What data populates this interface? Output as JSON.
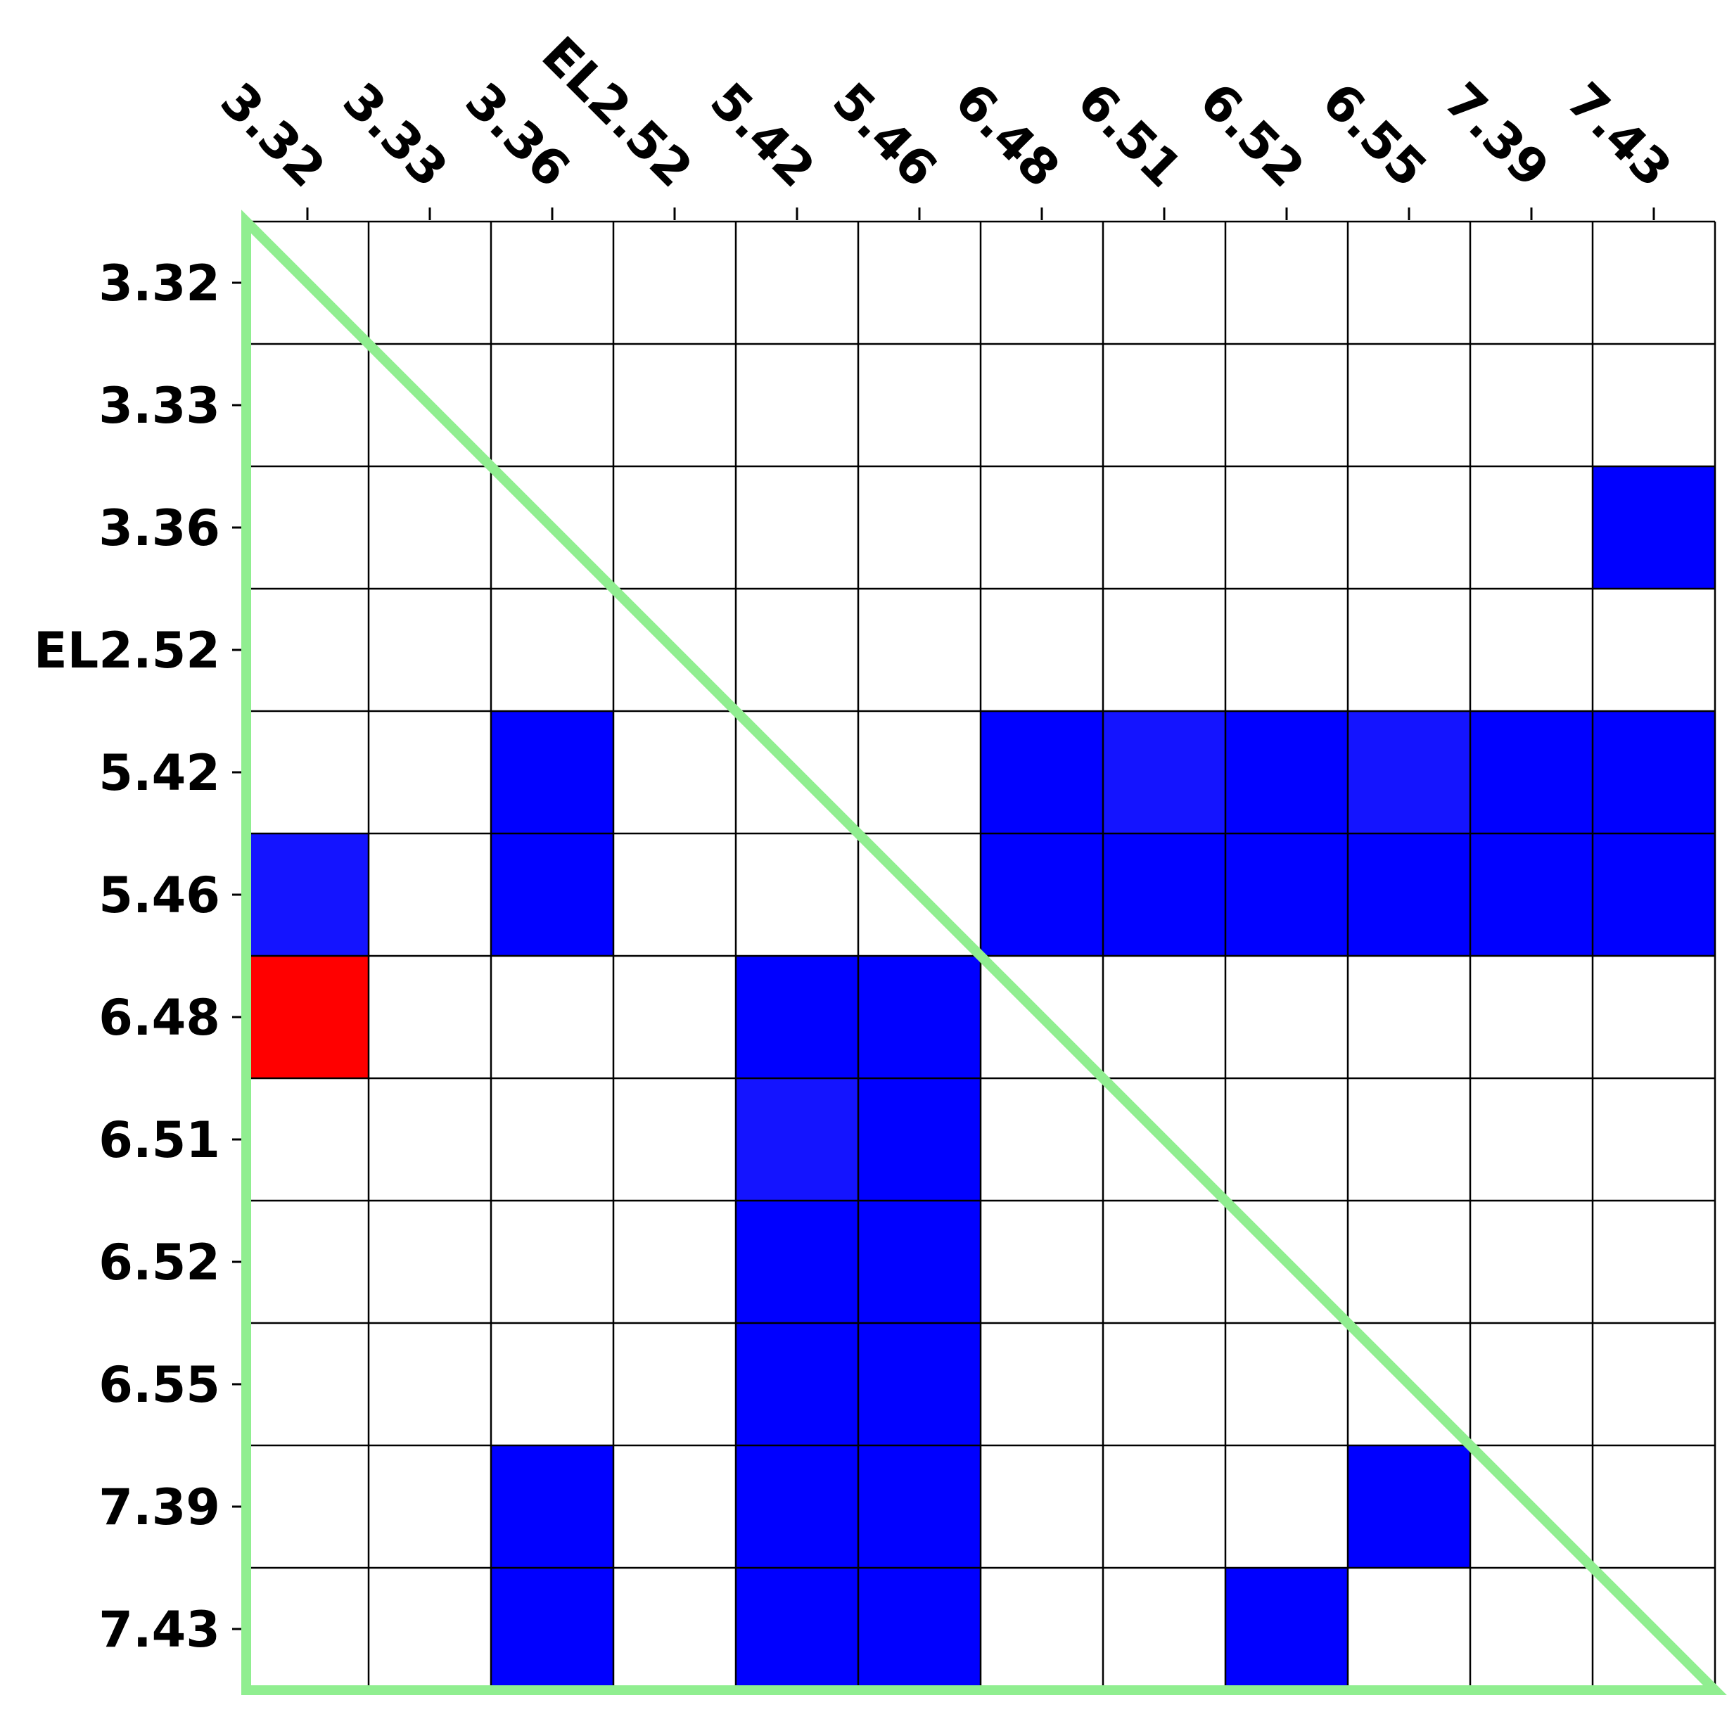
{
  "chart_data": {
    "type": "heatmap",
    "title": "",
    "xlabel": "",
    "ylabel": "",
    "x_categories": [
      "3.32",
      "3.33",
      "3.36",
      "EL2.52",
      "5.42",
      "5.46",
      "6.48",
      "6.51",
      "6.52",
      "6.55",
      "7.39",
      "7.43"
    ],
    "y_categories": [
      "3.32",
      "3.33",
      "3.36",
      "EL2.52",
      "5.42",
      "5.46",
      "6.48",
      "6.51",
      "6.52",
      "6.55",
      "7.39",
      "7.43"
    ],
    "x_tick_position": "top",
    "grid": true,
    "diagonal_triangle_outline": "lower-left",
    "colors": {
      "empty": "#ffffff",
      "blue": "#0000ff",
      "light_blue": "#1414ff",
      "red": "#ff0000",
      "grid": "#000000",
      "triangle": "#90ee90"
    },
    "cells": [
      {
        "row": "3.36",
        "col": "7.43",
        "color": "blue"
      },
      {
        "row": "5.42",
        "col": "3.36",
        "color": "blue"
      },
      {
        "row": "5.42",
        "col": "6.48",
        "color": "blue"
      },
      {
        "row": "5.42",
        "col": "6.51",
        "color": "light_blue"
      },
      {
        "row": "5.42",
        "col": "6.52",
        "color": "blue"
      },
      {
        "row": "5.42",
        "col": "6.55",
        "color": "light_blue"
      },
      {
        "row": "5.42",
        "col": "7.39",
        "color": "blue"
      },
      {
        "row": "5.42",
        "col": "7.43",
        "color": "blue"
      },
      {
        "row": "5.46",
        "col": "3.32",
        "color": "light_blue"
      },
      {
        "row": "5.46",
        "col": "3.36",
        "color": "blue"
      },
      {
        "row": "5.46",
        "col": "6.48",
        "color": "blue"
      },
      {
        "row": "5.46",
        "col": "6.51",
        "color": "blue"
      },
      {
        "row": "5.46",
        "col": "6.52",
        "color": "blue"
      },
      {
        "row": "5.46",
        "col": "6.55",
        "color": "blue"
      },
      {
        "row": "5.46",
        "col": "7.39",
        "color": "blue"
      },
      {
        "row": "5.46",
        "col": "7.43",
        "color": "blue"
      },
      {
        "row": "6.48",
        "col": "3.32",
        "color": "red"
      },
      {
        "row": "6.48",
        "col": "5.42",
        "color": "blue"
      },
      {
        "row": "6.48",
        "col": "5.46",
        "color": "blue"
      },
      {
        "row": "6.51",
        "col": "5.42",
        "color": "light_blue"
      },
      {
        "row": "6.51",
        "col": "5.46",
        "color": "blue"
      },
      {
        "row": "6.52",
        "col": "5.42",
        "color": "blue"
      },
      {
        "row": "6.52",
        "col": "5.46",
        "color": "blue"
      },
      {
        "row": "6.55",
        "col": "5.42",
        "color": "blue"
      },
      {
        "row": "6.55",
        "col": "5.46",
        "color": "blue"
      },
      {
        "row": "7.39",
        "col": "3.36",
        "color": "blue"
      },
      {
        "row": "7.39",
        "col": "5.42",
        "color": "blue"
      },
      {
        "row": "7.39",
        "col": "5.46",
        "color": "blue"
      },
      {
        "row": "7.39",
        "col": "6.55",
        "color": "blue"
      },
      {
        "row": "7.43",
        "col": "3.36",
        "color": "blue"
      },
      {
        "row": "7.43",
        "col": "5.42",
        "color": "blue"
      },
      {
        "row": "7.43",
        "col": "5.46",
        "color": "blue"
      },
      {
        "row": "7.43",
        "col": "6.52",
        "color": "blue"
      }
    ]
  }
}
